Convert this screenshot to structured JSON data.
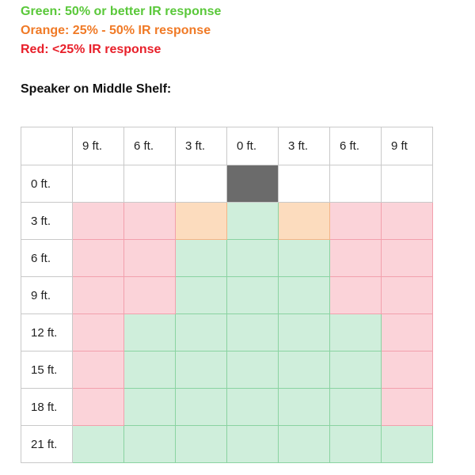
{
  "legend": {
    "green": "Green: 50% or better IR response",
    "orange": "Orange: 25% - 50% IR response",
    "red": "Red: <25% IR response"
  },
  "section_title": "Speaker on Middle Shelf:",
  "colors": {
    "green_text": "#5ac83a",
    "orange_text": "#f07a26",
    "red_text": "#e8202a",
    "green_fill": "#cfeedb",
    "orange_fill": "#fcdcbe",
    "red_fill": "#fbd3d9",
    "speaker_fill": "#6b6b6b"
  },
  "grid": {
    "columns": [
      "9 ft.",
      "6 ft.",
      "3 ft.",
      "0 ft.",
      "3 ft.",
      "6 ft.",
      "9 ft"
    ],
    "rows": [
      {
        "label": "0 ft.",
        "cells": [
          "W",
          "W",
          "W",
          "S",
          "W",
          "W",
          "W"
        ]
      },
      {
        "label": "3 ft.",
        "cells": [
          "R",
          "R",
          "O",
          "G",
          "O",
          "R",
          "R"
        ]
      },
      {
        "label": "6 ft.",
        "cells": [
          "R",
          "R",
          "G",
          "G",
          "G",
          "R",
          "R"
        ]
      },
      {
        "label": "9 ft.",
        "cells": [
          "R",
          "R",
          "G",
          "G",
          "G",
          "R",
          "R"
        ]
      },
      {
        "label": "12 ft.",
        "cells": [
          "R",
          "G",
          "G",
          "G",
          "G",
          "G",
          "R"
        ]
      },
      {
        "label": "15 ft.",
        "cells": [
          "R",
          "G",
          "G",
          "G",
          "G",
          "G",
          "R"
        ]
      },
      {
        "label": "18 ft.",
        "cells": [
          "R",
          "G",
          "G",
          "G",
          "G",
          "G",
          "R"
        ]
      },
      {
        "label": "21 ft.",
        "cells": [
          "G",
          "G",
          "G",
          "G",
          "G",
          "G",
          "G"
        ]
      }
    ]
  }
}
